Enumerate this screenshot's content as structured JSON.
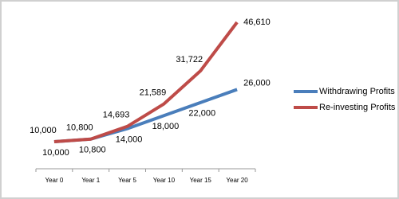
{
  "chart_data": {
    "type": "line",
    "categories": [
      "Year 0",
      "Year 1",
      "Year 5",
      "Year 10",
      "Year 15",
      "Year 20"
    ],
    "series": [
      {
        "name": "Withdrawing Profits",
        "color": "#4a7ebb",
        "values": [
          10000,
          10800,
          14000,
          18000,
          22000,
          26000
        ],
        "value_labels": [
          "10,000",
          "10,800",
          "14,000",
          "18,000",
          "22,000",
          "26,000"
        ]
      },
      {
        "name": "Re-investing Profits",
        "color": "#be4b48",
        "values": [
          10000,
          10800,
          14693,
          21589,
          31722,
          46610
        ],
        "value_labels": [
          "10,000",
          "10,800",
          "14,693",
          "21,589",
          "31,722",
          "46,610"
        ]
      }
    ],
    "legend": "right"
  }
}
